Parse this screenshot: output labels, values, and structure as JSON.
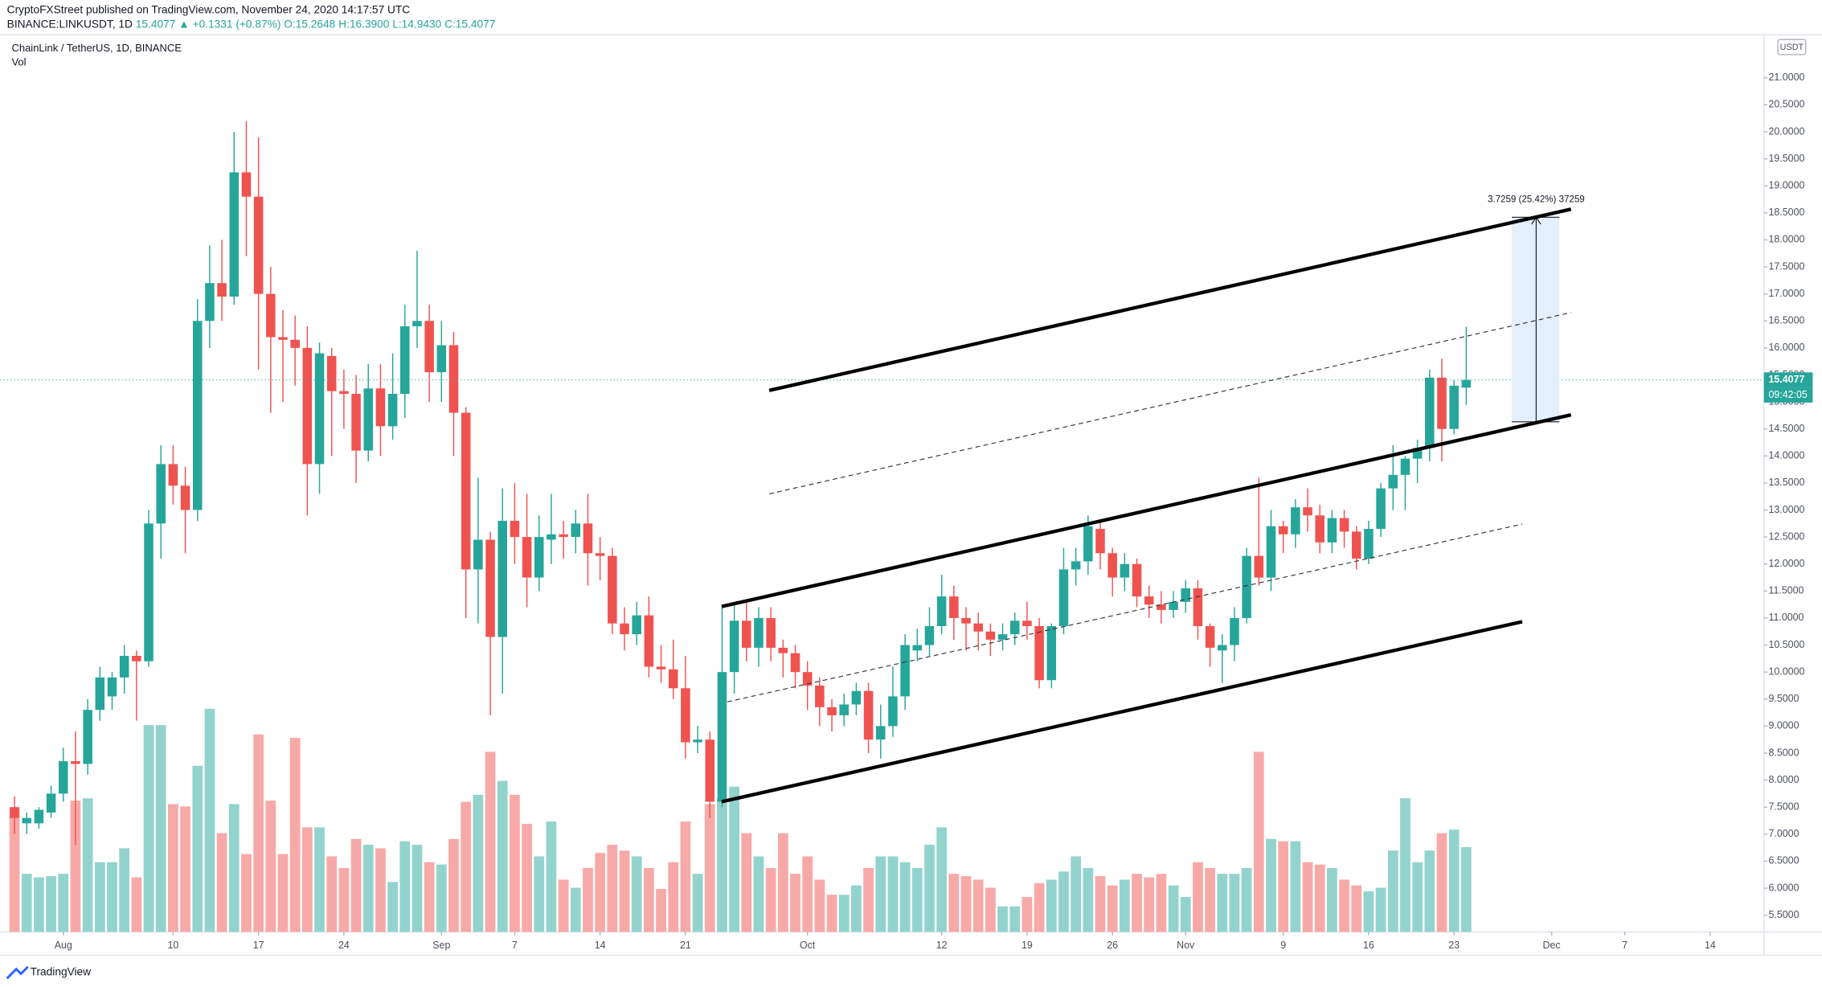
{
  "header": {
    "publisher": "CryptoFXStreet published on TradingView.com, November 24, 2020 14:17:57 UTC",
    "symbol": "BINANCE:LINKUSDT, 1D",
    "last": "15.4077",
    "change": "▲ +0.1331 (+0.87%)",
    "ohlc": "O:15.2648 H:16.3900 L:14.9430 C:15.4077"
  },
  "footer": {
    "brand": "TradingView"
  },
  "chart_data": {
    "type": "candlestick",
    "title": "ChainLink / TetherUS, 1D, BINANCE",
    "volume_label": "Vol",
    "currency": "USDT",
    "last_price_label": "15.4077",
    "countdown": "09:42:05",
    "measure_label": "3.7259 (25.42%) 37259",
    "up_color": "#26a69a",
    "down_color": "#ef5350",
    "up_volume_color": "#93d3cd",
    "down_volume_color": "#f7a9a7",
    "xlim": [
      -1.19,
      143.4
    ],
    "ylim": [
      5.19,
      22.44
    ],
    "xticks": [
      {
        "value": 4,
        "label": "Aug"
      },
      {
        "value": 13,
        "label": "10"
      },
      {
        "value": 20,
        "label": "17"
      },
      {
        "value": 27,
        "label": "24"
      },
      {
        "value": 35,
        "label": "Sep"
      },
      {
        "value": 41,
        "label": "7"
      },
      {
        "value": 48,
        "label": "14"
      },
      {
        "value": 55,
        "label": "21"
      },
      {
        "value": 65,
        "label": "Oct"
      },
      {
        "value": 76,
        "label": "12"
      },
      {
        "value": 83,
        "label": "19"
      },
      {
        "value": 90,
        "label": "26"
      },
      {
        "value": 96,
        "label": "Nov"
      },
      {
        "value": 104,
        "label": "9"
      },
      {
        "value": 111,
        "label": "16"
      },
      {
        "value": 118,
        "label": "23"
      },
      {
        "value": 126,
        "label": "Dec"
      },
      {
        "value": 132,
        "label": "7"
      },
      {
        "value": 139,
        "label": "14"
      }
    ],
    "yticks": [
      {
        "value": 5.5,
        "label": "5.5000"
      },
      {
        "value": 6,
        "label": "6.0000"
      },
      {
        "value": 6.5,
        "label": "6.5000"
      },
      {
        "value": 7,
        "label": "7.0000"
      },
      {
        "value": 7.5,
        "label": "7.5000"
      },
      {
        "value": 8,
        "label": "8.0000"
      },
      {
        "value": 8.5,
        "label": "8.5000"
      },
      {
        "value": 9,
        "label": "9.0000"
      },
      {
        "value": 9.5,
        "label": "9.5000"
      },
      {
        "value": 10,
        "label": "10.0000"
      },
      {
        "value": 10.5,
        "label": "10.5000"
      },
      {
        "value": 11,
        "label": "11.0000"
      },
      {
        "value": 11.5,
        "label": "11.5000"
      },
      {
        "value": 12,
        "label": "12.0000"
      },
      {
        "value": 12.5,
        "label": "12.5000"
      },
      {
        "value": 13,
        "label": "13.0000"
      },
      {
        "value": 13.5,
        "label": "13.5000"
      },
      {
        "value": 14,
        "label": "14.0000"
      },
      {
        "value": 14.5,
        "label": "14.5000"
      },
      {
        "value": 15,
        "label": "15.0000"
      },
      {
        "value": 15.5,
        "label": "15.5000"
      },
      {
        "value": 16,
        "label": "16.0000"
      },
      {
        "value": 16.5,
        "label": "16.5000"
      },
      {
        "value": 17,
        "label": "17.0000"
      },
      {
        "value": 17.5,
        "label": "17.5000"
      },
      {
        "value": 18,
        "label": "18.0000"
      },
      {
        "value": 18.5,
        "label": "18.5000"
      },
      {
        "value": 19,
        "label": "19.0000"
      },
      {
        "value": 19.5,
        "label": "19.5000"
      },
      {
        "value": 20,
        "label": "20.0000"
      },
      {
        "value": 20.5,
        "label": "20.5000"
      },
      {
        "value": 21,
        "label": "21.0000"
      }
    ],
    "open": [
      7.5,
      7.2,
      7.2,
      7.4,
      7.75,
      8.35,
      8.3,
      9.3,
      9.55,
      9.9,
      10.3,
      10.2,
      12.75,
      13.85,
      13.45,
      13.0,
      16.5,
      17.2,
      16.95,
      19.25,
      18.8,
      17.0,
      16.2,
      16.15,
      16.0,
      13.85,
      15.85,
      15.2,
      15.15,
      14.1,
      15.25,
      14.55,
      15.15,
      16.4,
      16.5,
      15.55,
      16.05,
      14.8,
      11.9,
      12.45,
      10.65,
      12.8,
      12.5,
      11.75,
      12.45,
      12.55,
      12.5,
      12.75,
      12.2,
      12.15,
      10.9,
      10.7,
      11.05,
      10.1,
      10.05,
      9.7,
      8.7,
      8.75,
      7.6,
      10.0,
      10.95,
      10.45,
      11.0,
      10.45,
      10.35,
      10.0,
      9.75,
      9.35,
      9.2,
      9.4,
      9.65,
      8.75,
      9.0,
      9.55,
      10.4,
      10.5,
      10.85,
      11.4,
      11.0,
      10.9,
      10.75,
      10.6,
      10.7,
      10.95,
      10.85,
      9.85,
      10.85,
      11.9,
      12.05,
      12.65,
      12.2,
      11.75,
      12.0,
      11.4,
      11.25,
      11.15,
      11.3,
      11.55,
      10.85,
      10.4,
      10.5,
      11.0,
      12.15,
      11.75,
      12.7,
      12.55,
      13.05,
      12.9,
      12.4,
      12.85,
      12.6,
      12.1,
      12.65,
      13.4,
      13.65,
      13.95,
      14.15,
      15.45,
      14.5,
      15.2648
    ],
    "high": [
      7.7,
      7.4,
      7.5,
      7.9,
      8.6,
      8.9,
      9.5,
      10.1,
      10.0,
      10.5,
      10.4,
      13.0,
      14.2,
      14.2,
      13.8,
      16.9,
      17.9,
      18.0,
      20.0,
      20.2,
      19.9,
      17.5,
      16.7,
      16.6,
      16.4,
      16.1,
      16.0,
      15.6,
      15.5,
      15.7,
      15.7,
      15.9,
      16.8,
      17.8,
      16.8,
      16.5,
      16.3,
      14.9,
      13.6,
      12.6,
      13.4,
      13.5,
      13.3,
      12.9,
      13.3,
      12.8,
      13.0,
      13.3,
      12.5,
      12.3,
      11.2,
      11.3,
      11.4,
      10.5,
      10.6,
      10.3,
      9.0,
      8.9,
      11.2,
      11.3,
      11.3,
      11.2,
      11.2,
      10.6,
      10.5,
      10.2,
      9.9,
      9.5,
      9.6,
      9.8,
      9.8,
      9.4,
      10.1,
      10.7,
      10.8,
      11.2,
      11.8,
      11.6,
      11.2,
      11.1,
      10.9,
      10.9,
      11.1,
      11.3,
      11.0,
      10.9,
      12.3,
      12.3,
      12.9,
      12.8,
      12.3,
      12.2,
      12.1,
      11.6,
      11.5,
      11.5,
      11.7,
      11.7,
      10.9,
      10.7,
      11.2,
      12.3,
      13.6,
      13.0,
      12.8,
      13.2,
      13.4,
      13.1,
      13.0,
      13.0,
      12.7,
      12.8,
      13.5,
      14.2,
      14.0,
      14.3,
      15.6,
      15.8,
      15.4,
      16.39
    ],
    "low": [
      7.0,
      7.0,
      7.1,
      7.3,
      7.6,
      6.8,
      8.1,
      9.1,
      9.3,
      9.6,
      9.1,
      10.1,
      12.1,
      13.1,
      12.2,
      12.8,
      16.0,
      16.5,
      16.8,
      17.7,
      15.6,
      14.8,
      15.0,
      15.3,
      12.9,
      13.3,
      14.0,
      14.5,
      13.5,
      13.9,
      14.0,
      14.3,
      14.7,
      16.0,
      15.0,
      15.0,
      14.0,
      11.0,
      10.9,
      9.2,
      9.6,
      12.0,
      11.2,
      11.5,
      12.0,
      12.1,
      12.2,
      11.6,
      11.7,
      10.7,
      10.4,
      10.5,
      9.9,
      9.8,
      9.5,
      8.4,
      8.5,
      7.3,
      7.5,
      9.6,
      10.2,
      10.1,
      10.2,
      9.9,
      9.7,
      9.3,
      9.0,
      8.9,
      9.0,
      9.2,
      8.5,
      8.4,
      8.8,
      9.3,
      10.2,
      10.3,
      10.7,
      10.6,
      10.4,
      10.4,
      10.3,
      10.4,
      10.5,
      10.6,
      9.7,
      9.7,
      10.7,
      11.6,
      11.8,
      11.9,
      11.4,
      11.5,
      11.2,
      11.0,
      10.9,
      11.0,
      11.1,
      10.6,
      10.1,
      9.8,
      10.2,
      10.9,
      11.6,
      11.5,
      12.2,
      12.3,
      12.6,
      12.2,
      12.2,
      12.3,
      11.9,
      12.0,
      12.5,
      13.0,
      13.0,
      13.5,
      13.9,
      13.9,
      14.4,
      14.943
    ],
    "close": [
      7.3,
      7.3,
      7.45,
      7.75,
      8.35,
      8.3,
      9.3,
      9.9,
      9.9,
      10.3,
      10.2,
      12.75,
      13.85,
      13.45,
      13.0,
      16.5,
      17.2,
      16.95,
      19.25,
      18.8,
      17.0,
      16.2,
      16.15,
      16.0,
      13.85,
      15.9,
      15.2,
      15.15,
      14.1,
      15.25,
      14.55,
      15.15,
      16.4,
      16.5,
      15.55,
      16.05,
      14.8,
      11.9,
      12.45,
      10.65,
      12.8,
      12.5,
      11.75,
      12.5,
      12.55,
      12.5,
      12.75,
      12.2,
      12.15,
      10.9,
      10.7,
      11.05,
      10.1,
      10.05,
      9.7,
      8.7,
      8.75,
      7.6,
      10.0,
      10.95,
      10.45,
      11.0,
      10.45,
      10.35,
      10.0,
      9.75,
      9.35,
      9.2,
      9.4,
      9.65,
      8.75,
      9.0,
      9.55,
      10.5,
      10.5,
      10.85,
      11.4,
      11.0,
      10.9,
      10.75,
      10.6,
      10.7,
      10.95,
      10.85,
      9.85,
      10.85,
      11.9,
      12.05,
      12.7,
      12.2,
      11.75,
      12.0,
      11.4,
      11.25,
      11.15,
      11.3,
      11.55,
      10.85,
      10.45,
      10.5,
      11.0,
      12.15,
      11.75,
      12.7,
      12.55,
      13.05,
      12.9,
      12.4,
      12.85,
      12.6,
      12.1,
      12.65,
      13.4,
      13.65,
      13.95,
      14.15,
      15.45,
      14.5,
      15.3,
      15.4077
    ],
    "volume": [
      107,
      50,
      47,
      48,
      50,
      113,
      115,
      60,
      60,
      72,
      47,
      178,
      178,
      110,
      108,
      143,
      192,
      85,
      110,
      67,
      170,
      113,
      67,
      167,
      90,
      90,
      65,
      55,
      80,
      75,
      72,
      43,
      78,
      75,
      60,
      58,
      80,
      112,
      118,
      155,
      130,
      118,
      93,
      65,
      95,
      45,
      38,
      55,
      68,
      75,
      70,
      65,
      55,
      37,
      60,
      95,
      50,
      110,
      115,
      125,
      85,
      65,
      55,
      85,
      50,
      65,
      45,
      32,
      32,
      40,
      55,
      65,
      65,
      60,
      55,
      75,
      90,
      50,
      48,
      45,
      38,
      22,
      22,
      30,
      42,
      45,
      52,
      65,
      55,
      48,
      40,
      45,
      50,
      47,
      50,
      40,
      30,
      60,
      55,
      50,
      50,
      55,
      155,
      80,
      78,
      78,
      60,
      58,
      55,
      45,
      40,
      35,
      38,
      70,
      115,
      60,
      70,
      85,
      88,
      73
    ]
  }
}
